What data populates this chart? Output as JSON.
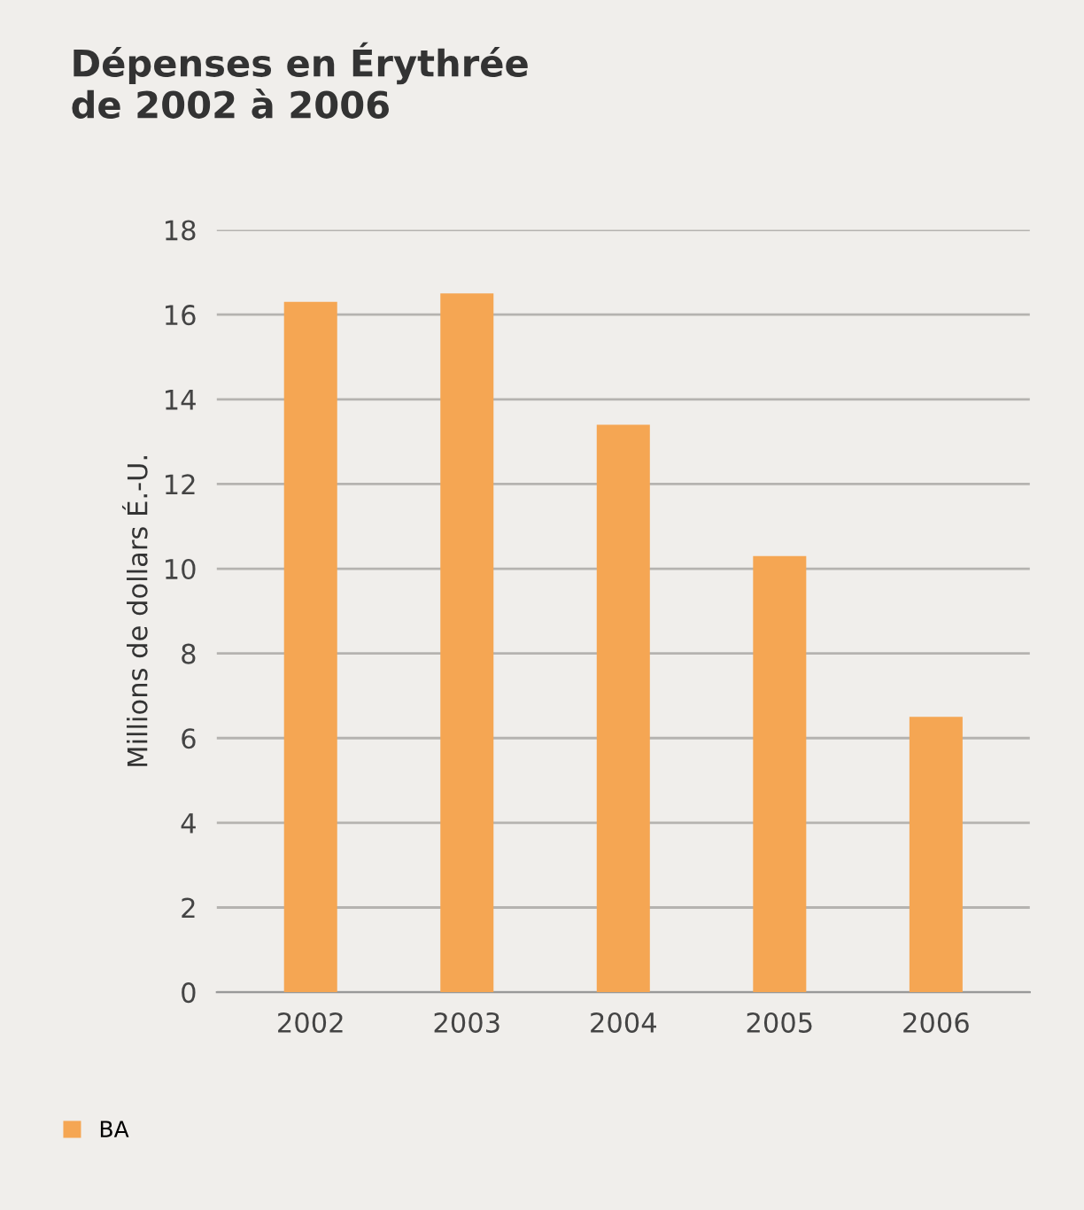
{
  "chart_data": {
    "type": "bar",
    "title": "Dépenses en Érythrée\nde 2002 à 2006",
    "ylabel": "Millions de dollars É.-U.",
    "categories": [
      "2002",
      "2003",
      "2004",
      "2005",
      "2006"
    ],
    "series": [
      {
        "name": "BA",
        "color": "#f5a653",
        "values": [
          16.3,
          16.5,
          13.4,
          10.3,
          6.5
        ]
      }
    ],
    "ylim": [
      0,
      18
    ],
    "yticks": [
      0,
      2,
      4,
      6,
      8,
      10,
      12,
      14,
      16,
      18
    ],
    "grid": "y",
    "legend": "bottom left"
  }
}
